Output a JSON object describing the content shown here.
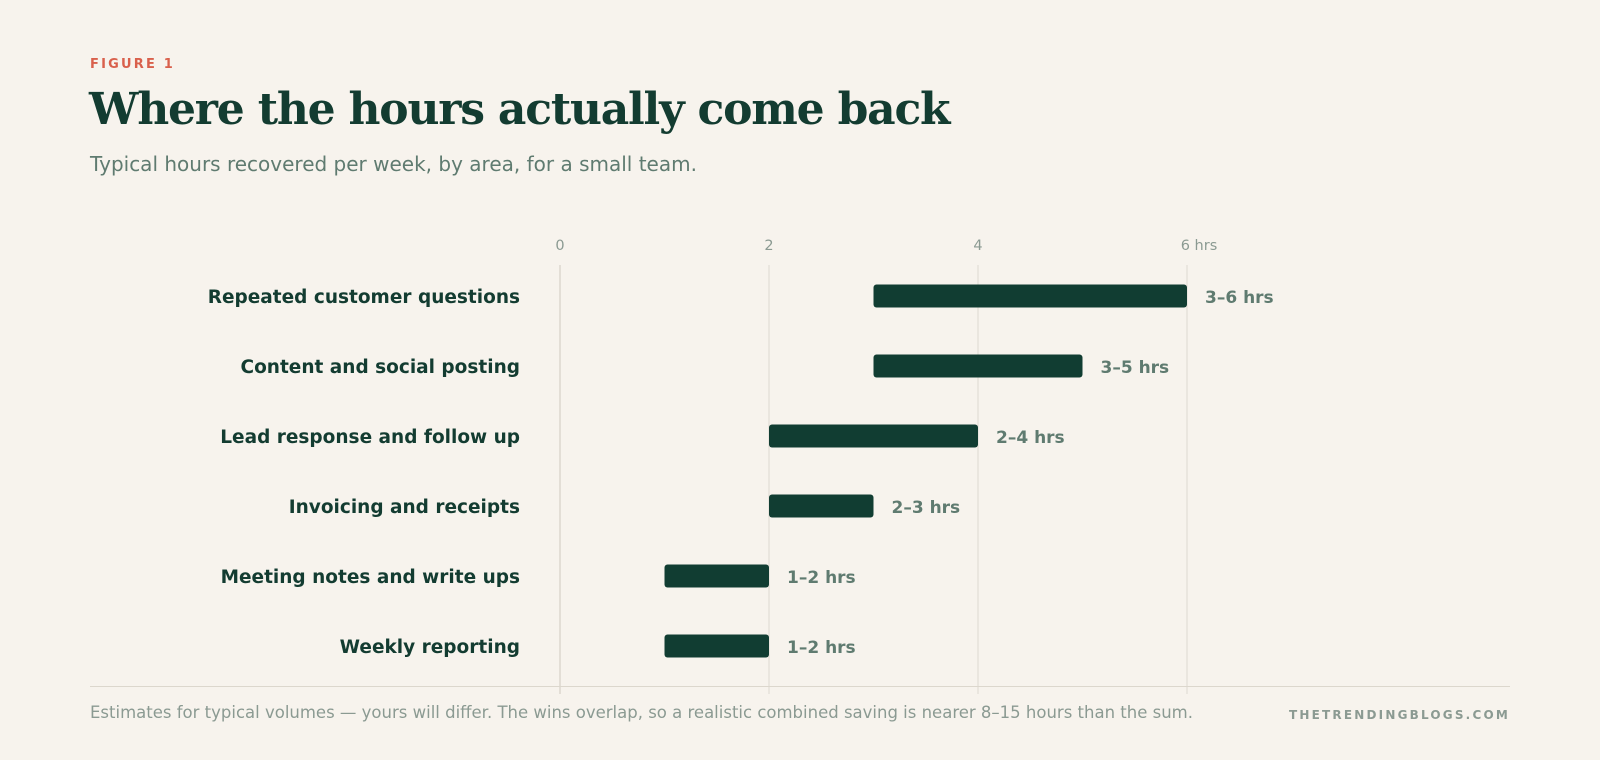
{
  "figure_label": "FIGURE 1",
  "footnote": "Estimates for typical volumes — yours will differ. The wins overlap, so a realistic combined saving is nearer 8–15 hours than the sum.",
  "brand": "THETRENDINGBLOGS.COM",
  "colors": {
    "bar": "#113d32",
    "label": "#133c31",
    "value_label": "#5f7b70",
    "tick": "#8b9a92",
    "grid": "#dedad1",
    "accent": "#d9604c",
    "background": "#f7f3ed"
  },
  "chart_data": {
    "type": "bar",
    "orientation": "horizontal",
    "style": "floating-range",
    "title": "Where the hours actually come back",
    "subtitle": "Typical hours recovered per week, by area, for a small team.",
    "categories": [
      "Repeated customer questions",
      "Content and social posting",
      "Lead response and follow up",
      "Invoicing and receipts",
      "Meeting notes and write ups",
      "Weekly reporting"
    ],
    "ranges": [
      [
        3,
        6
      ],
      [
        3,
        5
      ],
      [
        2,
        4
      ],
      [
        2,
        3
      ],
      [
        1,
        2
      ],
      [
        1,
        2
      ]
    ],
    "value_labels": [
      "3–6 hrs",
      "3–5 hrs",
      "2–4 hrs",
      "2–3 hrs",
      "1–2 hrs",
      "1–2 hrs"
    ],
    "x_ticks": [
      0,
      2,
      4,
      6
    ],
    "x_tick_labels": [
      "0",
      "2",
      "4",
      "6 hrs"
    ],
    "xlim": [
      0,
      6
    ],
    "grid": true,
    "legend": "none"
  }
}
